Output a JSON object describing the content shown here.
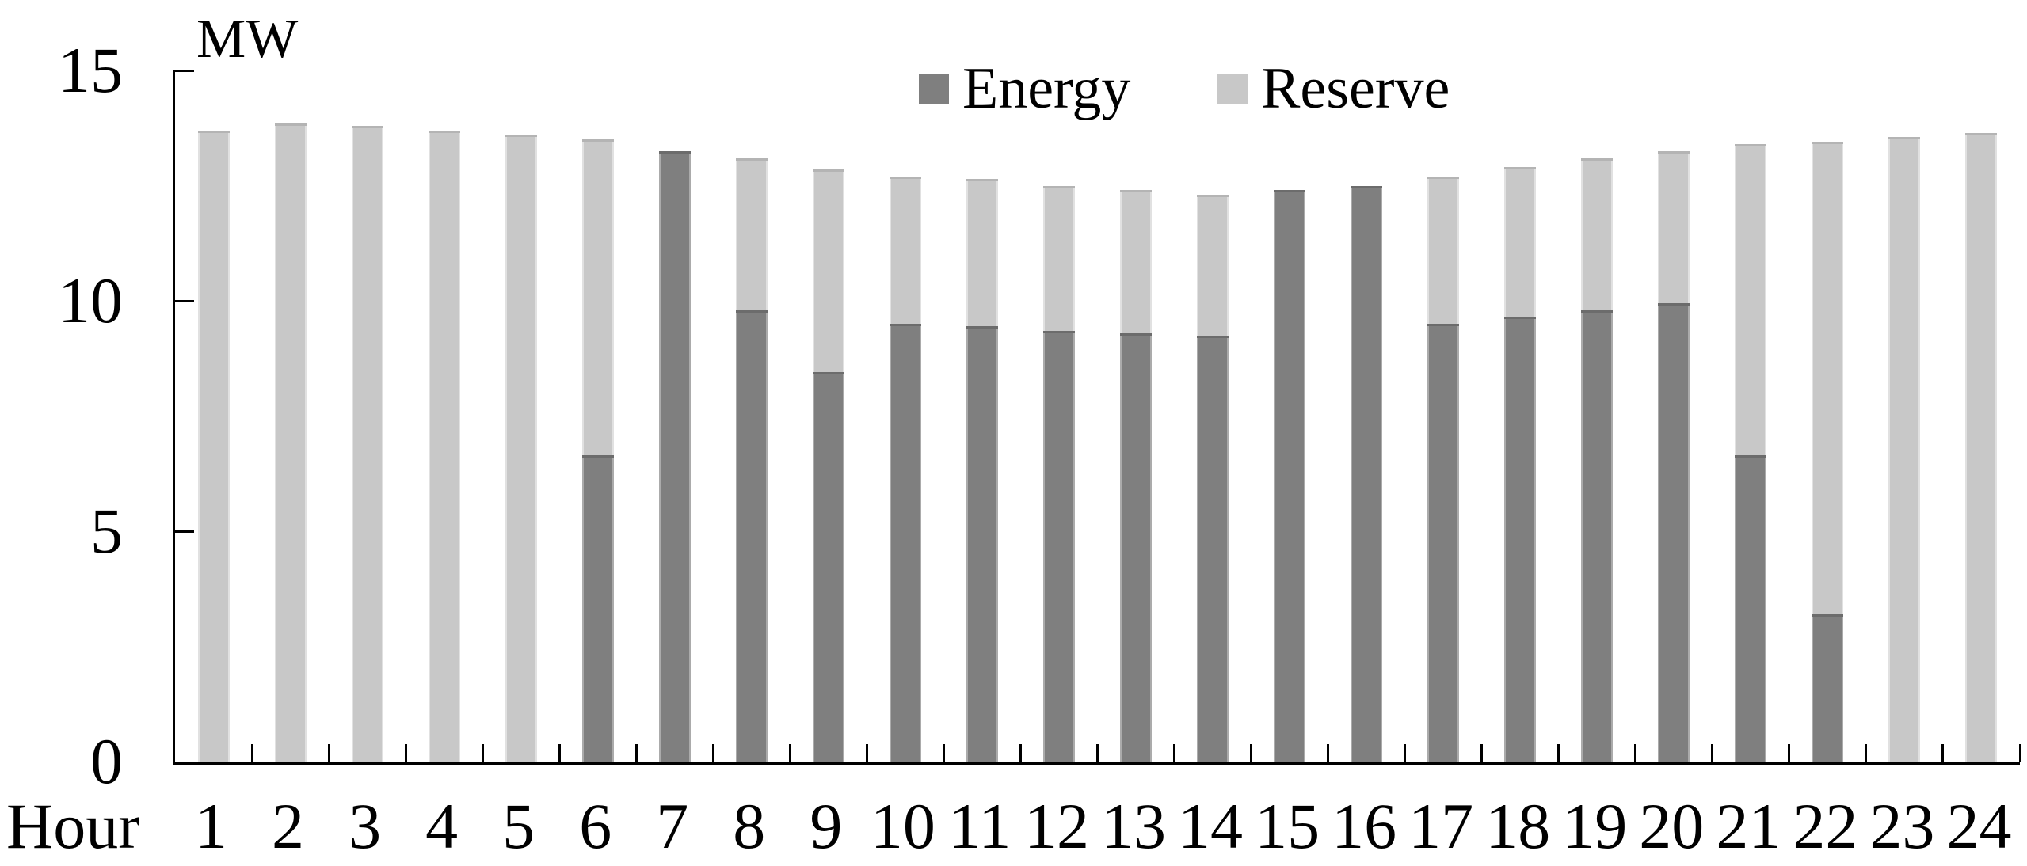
{
  "chart_data": {
    "type": "bar",
    "stacked": true,
    "ylabel": "MW",
    "xlabel": "Hour",
    "ylim": [
      0,
      15
    ],
    "yticks": [
      0,
      5,
      10,
      15
    ],
    "grid": false,
    "legend_position": "top-center",
    "categories": [
      1,
      2,
      3,
      4,
      5,
      6,
      7,
      8,
      9,
      10,
      11,
      12,
      13,
      14,
      15,
      16,
      17,
      18,
      19,
      20,
      21,
      22,
      23,
      24
    ],
    "series": [
      {
        "name": "Energy",
        "color": "#7f7f7f",
        "values": [
          0,
          0,
          0,
          0,
          0,
          6.65,
          13.25,
          9.8,
          8.45,
          9.5,
          9.45,
          9.35,
          9.3,
          9.25,
          12.4,
          12.5,
          9.5,
          9.65,
          9.8,
          9.95,
          6.65,
          3.2,
          0,
          0
        ]
      },
      {
        "name": "Reserve",
        "color": "#c8c8c8",
        "values": [
          13.7,
          13.85,
          13.8,
          13.7,
          13.6,
          6.85,
          0,
          3.3,
          4.4,
          3.2,
          3.2,
          3.15,
          3.1,
          3.05,
          0,
          0,
          3.2,
          3.25,
          3.3,
          3.3,
          6.75,
          10.25,
          13.55,
          13.65
        ]
      }
    ]
  },
  "colors": {
    "background": "#ffffff",
    "axis": "#000000",
    "energy": "#7f7f7f",
    "reserve": "#c8c8c8"
  }
}
